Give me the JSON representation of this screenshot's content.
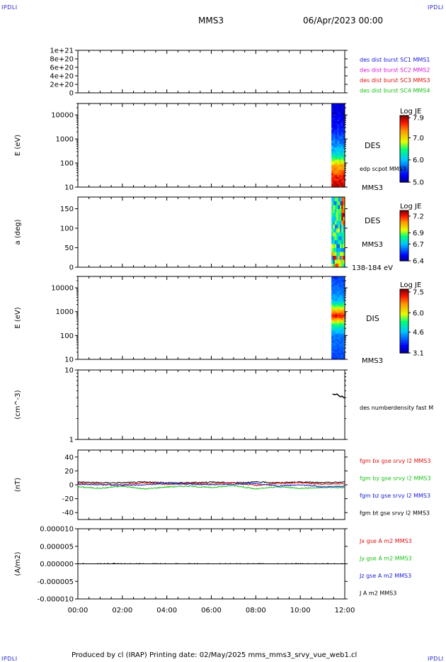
{
  "corners": {
    "tl": "IPDLI",
    "tr": "IPDLI",
    "bl": "IPDLI",
    "br": "IPDLI"
  },
  "header": {
    "spacecraft": "MMS3",
    "date": "06/Apr/2023 00:00"
  },
  "footer": {
    "text": "Produced by cl (IRAP)   Printing date: 02/May/2025   mms_mms3_srvy_vue_web1.cl"
  },
  "x_axis": {
    "ticks": [
      "00:00",
      "02:00",
      "04:00",
      "06:00",
      "08:00",
      "10:00",
      "12:00"
    ]
  },
  "chart_data": [
    {
      "type": "line",
      "panel": "dist-burst",
      "ylim": [
        0,
        1e+21
      ],
      "ytick_values": [
        0,
        2e+20,
        4e+20,
        6e+20,
        8e+20,
        1e+21
      ],
      "yticks": [
        "0",
        "2e+20",
        "4e+20",
        "6e+20",
        "8e+20",
        "1e+21"
      ],
      "series": [
        {
          "name": "des dist burst SC1 MMS1",
          "color": "#1a1ad6"
        },
        {
          "name": "des dist burst SC2 MMS2",
          "color": "#d21ad2"
        },
        {
          "name": "des dist burst SC3 MMS3",
          "color": "#e01010"
        },
        {
          "name": "des dist burst SC4 MMS4",
          "color": "#18c018"
        }
      ],
      "x_hours": [
        0,
        12
      ],
      "values": [
        0,
        0
      ]
    },
    {
      "type": "heatmap",
      "panel": "des-energy",
      "ylabel": "E (eV)",
      "yscale": "log",
      "ylim": [
        10,
        30000
      ],
      "ytick_values": [
        10,
        100,
        1000,
        10000
      ],
      "yticks": [
        "10",
        "100",
        "1000",
        "10000"
      ],
      "data_start_hour": 11.4,
      "label": "DES",
      "label2": "edp scpot MMS3",
      "sublabel": "MMS3",
      "colorbar": {
        "title": "Log JE",
        "min": 5.0,
        "max": 8.0,
        "ticks": [
          "5.0",
          "6.0",
          "7.0",
          "7.9"
        ],
        "tick_values": [
          5.0,
          6.0,
          7.0,
          7.9
        ]
      },
      "profile": [
        {
          "E": 10,
          "v": 7.9
        },
        {
          "E": 30,
          "v": 7.7
        },
        {
          "E": 80,
          "v": 7.2
        },
        {
          "E": 150,
          "v": 6.6
        },
        {
          "E": 300,
          "v": 6.1
        },
        {
          "E": 700,
          "v": 5.8
        },
        {
          "E": 2000,
          "v": 5.5
        },
        {
          "E": 10000,
          "v": 5.3
        },
        {
          "E": 30000,
          "v": 5.2
        }
      ]
    },
    {
      "type": "heatmap",
      "panel": "des-pitch",
      "ylabel": "a (deg)",
      "ylim": [
        0,
        180
      ],
      "ytick_values": [
        0,
        50,
        100,
        150
      ],
      "yticks": [
        "0",
        "50",
        "100",
        "150"
      ],
      "data_start_hour": 11.4,
      "label": "DES",
      "sublabel": "MMS3",
      "energy_band": "138-184 eV",
      "colorbar": {
        "title": "Log JE",
        "min": 6.4,
        "max": 7.3,
        "ticks": [
          "6.4",
          "6.7",
          "6.9",
          "7.2"
        ],
        "tick_values": [
          6.4,
          6.7,
          6.9,
          7.2
        ]
      }
    },
    {
      "type": "heatmap",
      "panel": "dis-energy",
      "ylabel": "E (eV)",
      "yscale": "log",
      "ylim": [
        10,
        30000
      ],
      "ytick_values": [
        10,
        100,
        1000,
        10000
      ],
      "yticks": [
        "10",
        "100",
        "1000",
        "10000"
      ],
      "data_start_hour": 11.4,
      "label": "DIS",
      "sublabel": "MMS3",
      "colorbar": {
        "title": "Log JE",
        "min": 3.1,
        "max": 7.7,
        "ticks": [
          "3.1",
          "4.6",
          "6.0",
          "7.5"
        ],
        "tick_values": [
          3.1,
          4.6,
          6.0,
          7.5
        ]
      },
      "profile": [
        {
          "E": 10,
          "v": 4.0
        },
        {
          "E": 100,
          "v": 4.3
        },
        {
          "E": 300,
          "v": 5.4
        },
        {
          "E": 700,
          "v": 7.4
        },
        {
          "E": 1000,
          "v": 6.6
        },
        {
          "E": 3000,
          "v": 4.6
        },
        {
          "E": 30000,
          "v": 3.9
        }
      ]
    },
    {
      "type": "line",
      "panel": "density",
      "ylabel": "(cm^-3)",
      "yscale": "log",
      "ylim": [
        1,
        10
      ],
      "ytick_values": [
        1,
        10
      ],
      "yticks": [
        "1",
        "10"
      ],
      "series": [
        {
          "name": "des numberdensity fast M",
          "color": "#000000",
          "x": [
            11.45,
            11.55,
            11.65,
            11.72,
            11.8,
            11.88,
            11.95,
            12.0
          ],
          "y": [
            4.5,
            4.4,
            4.5,
            4.3,
            4.1,
            4.2,
            4.0,
            4.0
          ]
        }
      ]
    },
    {
      "type": "line",
      "panel": "fgm",
      "ylabel": "(nT)",
      "ylim": [
        -50,
        50
      ],
      "ytick_values": [
        -40,
        -20,
        0,
        20,
        40
      ],
      "yticks": [
        "-40",
        "-20",
        "0",
        "20",
        "40"
      ],
      "x": [
        0,
        1,
        2,
        3,
        4,
        5,
        6,
        7,
        8,
        9,
        10,
        11,
        12
      ],
      "series": [
        {
          "name": "fgm bx gse srvy l2 MMS3",
          "color": "#e01010",
          "values": [
            2,
            1,
            0,
            3,
            1,
            2,
            1,
            3,
            -1,
            2,
            3,
            1,
            2
          ]
        },
        {
          "name": "fgm by gse srvy l2 MMS3",
          "color": "#18c018",
          "values": [
            -3,
            -5,
            -2,
            -6,
            -3,
            -2,
            -4,
            -1,
            -6,
            -3,
            -5,
            -4,
            -4
          ]
        },
        {
          "name": "fgm bz gse srvy l2 MMS3",
          "color": "#1a1ad6",
          "values": [
            1,
            0,
            -1,
            0,
            2,
            1,
            0,
            1,
            2,
            -2,
            0,
            -3,
            -2
          ]
        },
        {
          "name": "fgm bt gse srvy l2 MMS3",
          "color": "#000000",
          "values": [
            4,
            3,
            3,
            4,
            3,
            3,
            4,
            3,
            4,
            3,
            4,
            3,
            4
          ]
        }
      ]
    },
    {
      "type": "line",
      "panel": "current",
      "ylabel": "(A/m2)",
      "ylim": [
        -1e-05,
        1e-05
      ],
      "ytick_values": [
        -1e-05,
        -5e-06,
        0,
        5e-06,
        1e-05
      ],
      "yticks": [
        "-0.000010",
        "-0.000005",
        "0.000000",
        "0.000005",
        "0.000010"
      ],
      "x": [
        0,
        12
      ],
      "series": [
        {
          "name": "Jx gse A m2 MMS3",
          "color": "#e01010",
          "values": [
            0,
            0
          ]
        },
        {
          "name": "Jy gse A m2 MMS3",
          "color": "#18c018",
          "values": [
            0,
            0
          ]
        },
        {
          "name": "Jz gse A m2 MMS3",
          "color": "#1a1ad6",
          "values": [
            0,
            0
          ]
        },
        {
          "name": "J A m2 MMS3",
          "color": "#000000",
          "values": [
            0,
            0
          ]
        }
      ]
    }
  ]
}
